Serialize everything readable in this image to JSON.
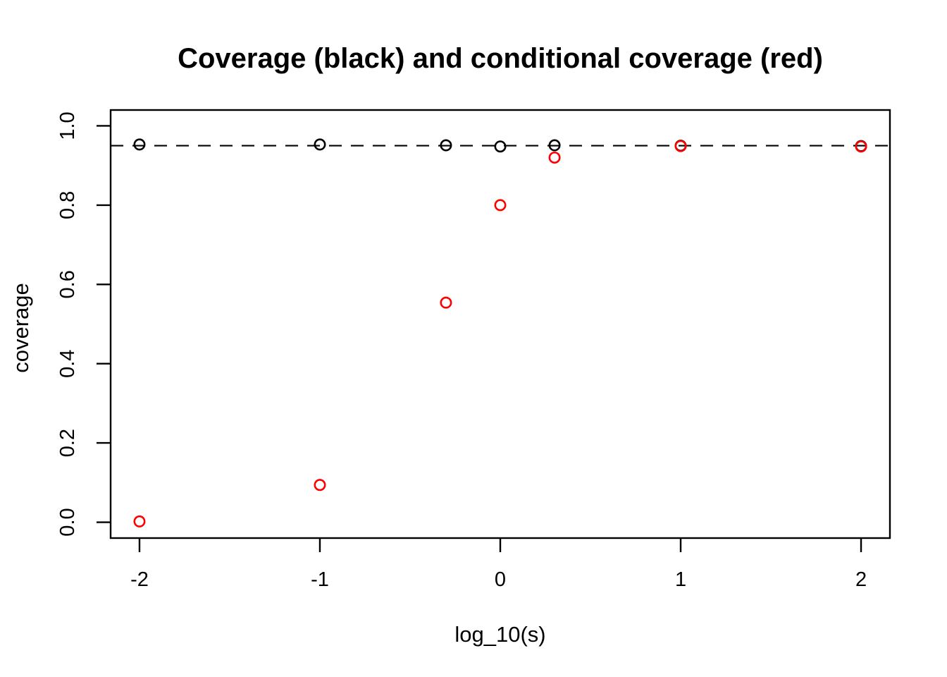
{
  "page": {
    "background": "#ffffff"
  },
  "chart_data": {
    "type": "scatter",
    "title": "Coverage (black) and conditional coverage (red)",
    "xlabel": "log_10(s)",
    "ylabel": "coverage",
    "xlim": [
      -2.16,
      2.16
    ],
    "ylim": [
      -0.04,
      1.04
    ],
    "x_tick_values": [
      -2,
      -1,
      0,
      1,
      2
    ],
    "x_tick_labels": [
      "-2",
      "-1",
      "0",
      "1",
      "2"
    ],
    "y_tick_values": [
      0.0,
      0.2,
      0.4,
      0.6,
      0.8,
      1.0
    ],
    "y_tick_labels": [
      "0.0",
      "0.2",
      "0.4",
      "0.6",
      "0.8",
      "1.0"
    ],
    "grid": false,
    "legend": "none (series identified by title colors)",
    "reference_line": {
      "y": 0.95,
      "style": "dashed",
      "color": "#000000"
    },
    "x": [
      -2,
      -1,
      -0.301,
      0,
      0.301,
      1,
      2
    ],
    "series": [
      {
        "name": "coverage",
        "color": "#000000",
        "marker": "open-circle",
        "values": [
          0.953,
          0.953,
          0.951,
          0.948,
          0.951,
          0.95,
          0.949
        ]
      },
      {
        "name": "conditional coverage",
        "color": "#FF0000",
        "marker": "open-circle",
        "values": [
          0.002,
          0.094,
          0.554,
          0.8,
          0.92,
          0.949,
          0.948
        ]
      }
    ]
  }
}
